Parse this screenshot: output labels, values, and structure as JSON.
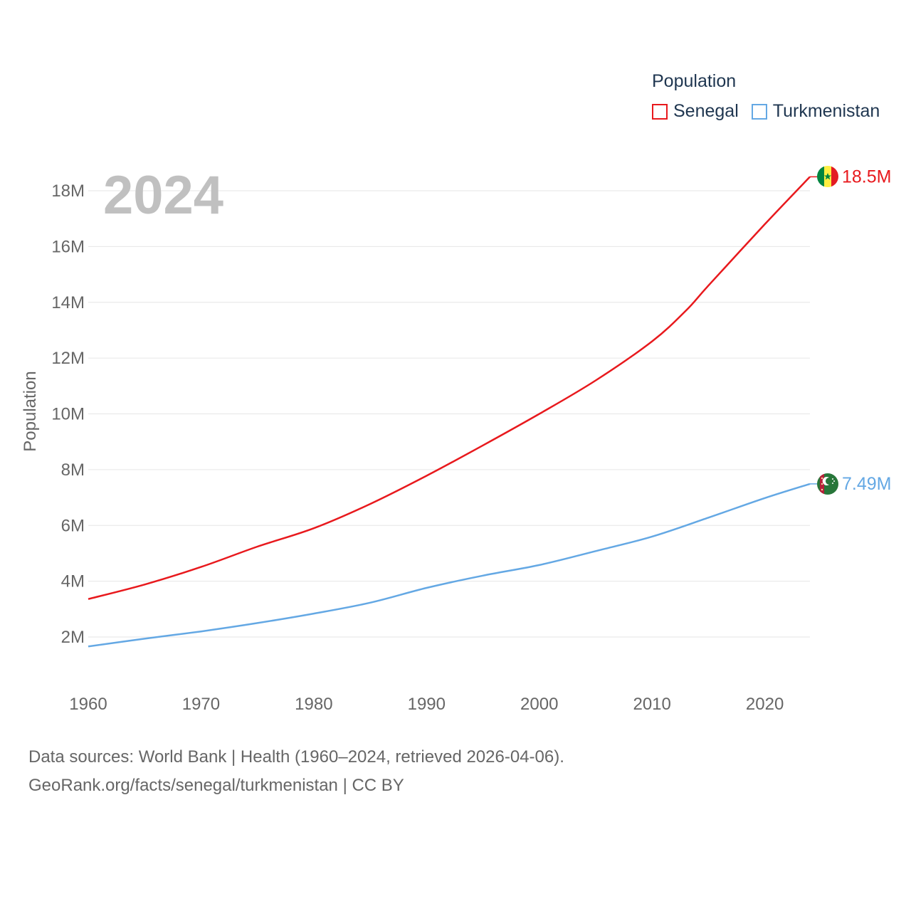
{
  "legend": {
    "title": "Population",
    "items": [
      {
        "label": "Senegal",
        "color": "#e8191d"
      },
      {
        "label": "Turkmenistan",
        "color": "#64a8e4"
      }
    ]
  },
  "year_label": "2024",
  "footer": {
    "line1": "Data sources: World Bank | Health (1960–2024, retrieved 2026-04-06).",
    "line2": "GeoRank.org/facts/senegal/turkmenistan | CC BY"
  },
  "chart_data": {
    "type": "line",
    "title": "",
    "xlabel": "",
    "ylabel": "Population",
    "xlim": [
      1960,
      2024
    ],
    "ylim": [
      0,
      19000000
    ],
    "x_ticks": [
      1960,
      1970,
      1980,
      1990,
      2000,
      2010,
      2020
    ],
    "x_tick_labels": [
      "1960",
      "1970",
      "1980",
      "1990",
      "2000",
      "2010",
      "2020"
    ],
    "y_ticks": [
      2000000,
      4000000,
      6000000,
      8000000,
      10000000,
      12000000,
      14000000,
      16000000,
      18000000
    ],
    "y_tick_labels": [
      "2M",
      "4M",
      "6M",
      "8M",
      "10M",
      "12M",
      "14M",
      "16M",
      "18M"
    ],
    "grid": true,
    "series": [
      {
        "name": "Senegal",
        "color": "#e8191d",
        "end_label": "18.5M",
        "x": [
          1960,
          1965,
          1970,
          1975,
          1980,
          1985,
          1990,
          1995,
          2000,
          2005,
          2010,
          2013,
          2015,
          2020,
          2024
        ],
        "values": [
          3360000,
          3880000,
          4510000,
          5240000,
          5900000,
          6770000,
          7780000,
          8870000,
          10000000,
          11200000,
          12600000,
          13700000,
          14600000,
          16800000,
          18500000
        ]
      },
      {
        "name": "Turkmenistan",
        "color": "#64a8e4",
        "end_label": "7.49M",
        "x": [
          1960,
          1965,
          1970,
          1975,
          1980,
          1985,
          1990,
          1995,
          2000,
          2005,
          2010,
          2015,
          2020,
          2024
        ],
        "values": [
          1660000,
          1940000,
          2200000,
          2500000,
          2840000,
          3230000,
          3760000,
          4200000,
          4580000,
          5080000,
          5600000,
          6280000,
          6980000,
          7490000
        ]
      }
    ]
  }
}
